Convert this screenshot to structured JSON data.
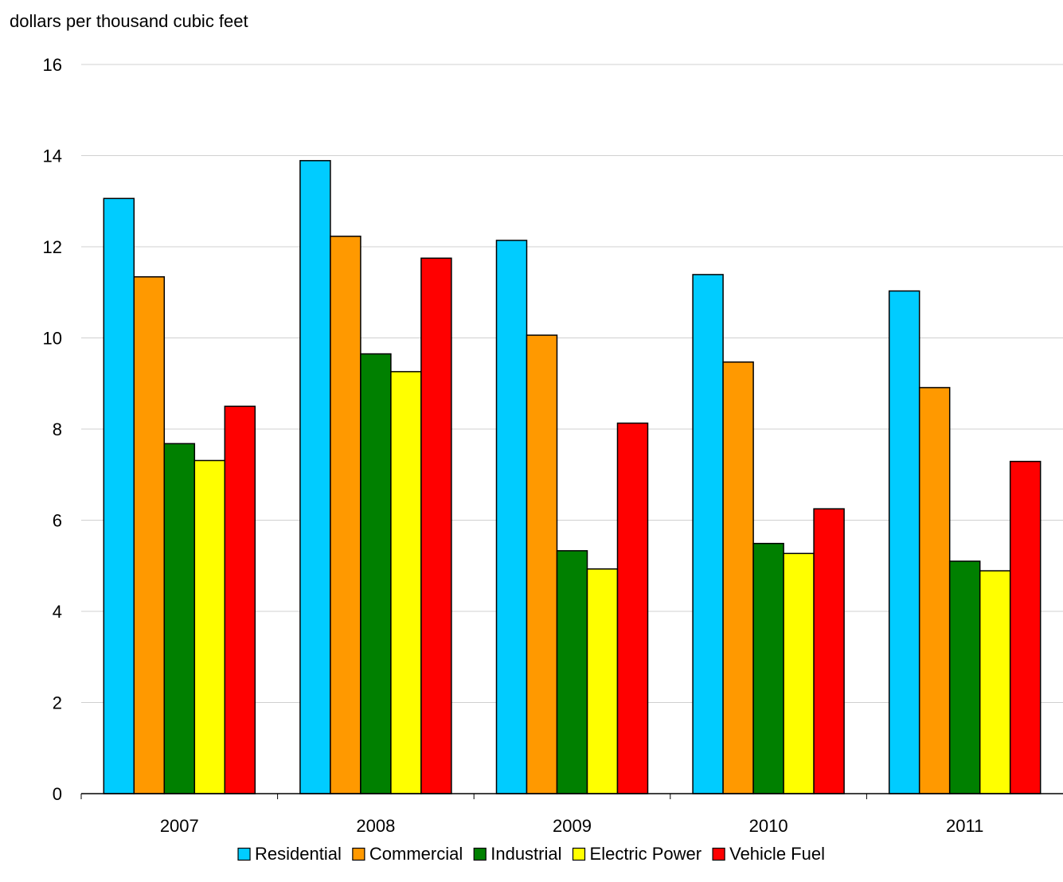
{
  "chart_data": {
    "type": "bar",
    "ylabel": "dollars per thousand cubic feet",
    "xlabel": "",
    "ylim": [
      0,
      16
    ],
    "ytick_step": 2,
    "yticks": [
      "0",
      "2",
      "4",
      "6",
      "8",
      "10",
      "12",
      "14",
      "16"
    ],
    "grid": true,
    "legend_position": "bottom",
    "categories": [
      "2007",
      "2008",
      "2009",
      "2010",
      "2011"
    ],
    "series": [
      {
        "name": "Residential",
        "color": "#00CCFF",
        "values": [
          13.06,
          13.89,
          12.14,
          11.39,
          11.03
        ]
      },
      {
        "name": "Commercial",
        "color": "#FF9900",
        "values": [
          11.34,
          12.23,
          10.06,
          9.47,
          8.91
        ]
      },
      {
        "name": "Industrial",
        "color": "#008000",
        "values": [
          7.68,
          9.65,
          5.33,
          5.49,
          5.1
        ]
      },
      {
        "name": "Electric Power",
        "color": "#FFFF00",
        "values": [
          7.31,
          9.26,
          4.93,
          5.27,
          4.89
        ]
      },
      {
        "name": "Vehicle Fuel",
        "color": "#FF0000",
        "values": [
          8.5,
          11.75,
          8.13,
          6.25,
          7.29
        ]
      }
    ]
  }
}
